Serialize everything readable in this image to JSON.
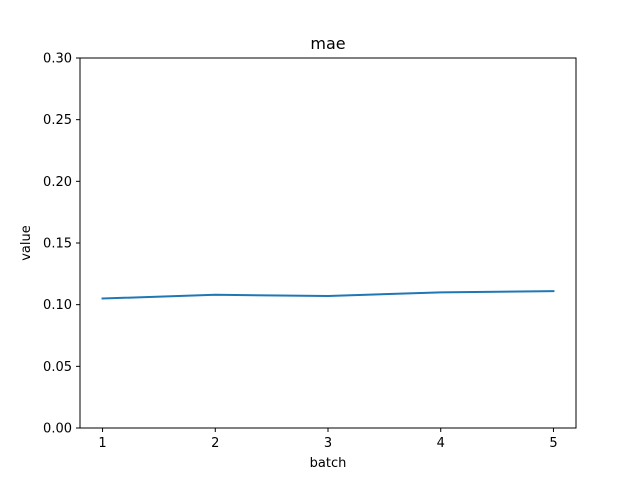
{
  "chart_data": {
    "type": "line",
    "title": "mae",
    "xlabel": "batch",
    "ylabel": "value",
    "x": [
      1,
      2,
      3,
      4,
      5
    ],
    "series": [
      {
        "values": [
          0.105,
          0.108,
          0.107,
          0.11,
          0.111
        ],
        "color": "#1f77b4"
      }
    ],
    "xticks": [
      "1",
      "2",
      "3",
      "4",
      "5"
    ],
    "yticks": [
      "0.00",
      "0.05",
      "0.10",
      "0.15",
      "0.20",
      "0.25",
      "0.30"
    ],
    "xlim": [
      0.8,
      5.2
    ],
    "ylim": [
      0,
      0.3
    ],
    "grid": false,
    "legend": "none"
  }
}
